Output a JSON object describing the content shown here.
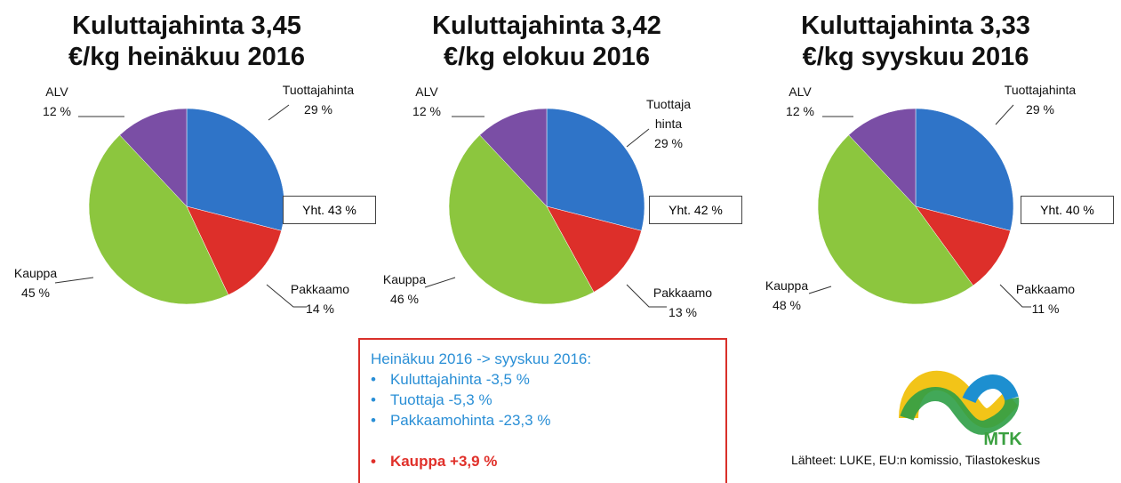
{
  "chart_data": [
    {
      "type": "pie",
      "title": [
        "Kuluttajahinta 3,45",
        "€/kg heinäkuu 2016"
      ],
      "categories": [
        "Tuottajahinta",
        "Pakkaamo",
        "Kauppa",
        "ALV"
      ],
      "values": [
        29,
        14,
        45,
        12
      ],
      "value_labels": [
        "29 %",
        "14 %",
        "45 %",
        "12 %"
      ],
      "colors": [
        "#2f74c8",
        "#dd2f2a",
        "#8cc63e",
        "#7a4ea5"
      ],
      "annotation": "Yht. 43 %"
    },
    {
      "type": "pie",
      "title": [
        "Kuluttajahinta 3,42",
        "€/kg elokuu 2016"
      ],
      "categories": [
        "Tuottaja\nhinta",
        "Pakkaamo",
        "Kauppa",
        "ALV"
      ],
      "values": [
        29,
        13,
        46,
        12
      ],
      "value_labels": [
        "29 %",
        "13 %",
        "46 %",
        "12 %"
      ],
      "colors": [
        "#2f74c8",
        "#dd2f2a",
        "#8cc63e",
        "#7a4ea5"
      ],
      "annotation": "Yht. 42 %"
    },
    {
      "type": "pie",
      "title": [
        "Kuluttajahinta 3,33",
        "€/kg syyskuu 2016"
      ],
      "categories": [
        "Tuottajahinta",
        "Pakkaamo",
        "Kauppa",
        "ALV"
      ],
      "values": [
        29,
        11,
        48,
        12
      ],
      "value_labels": [
        "29 %",
        "11 %",
        "48 %",
        "12 %"
      ],
      "colors": [
        "#2f74c8",
        "#dd2f2a",
        "#8cc63e",
        "#7a4ea5"
      ],
      "annotation": "Yht. 40 %"
    }
  ],
  "summary": {
    "heading": "Heinäkuu 2016 -> syyskuu 2016:",
    "items": [
      "Kuluttajahinta -3,5 %",
      "Tuottaja -5,3 %",
      "Pakkaamohinta -23,3 %"
    ],
    "highlight": "Kauppa +3,9 %"
  },
  "logo": "MTK",
  "sources": "Lähteet: LUKE, EU:n komissio, Tilastokeskus"
}
